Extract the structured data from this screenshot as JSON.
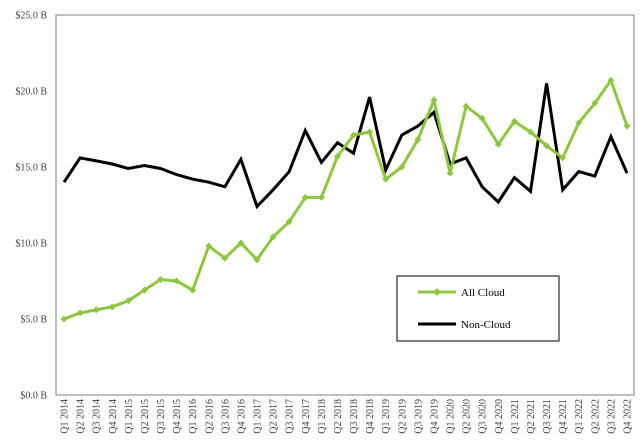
{
  "chart_data": {
    "type": "line",
    "title": "",
    "xlabel": "",
    "ylabel": "",
    "y_tick_labels": [
      "$0.0 B",
      "$5.0 B",
      "$10.0 B",
      "$15.0 B",
      "$20.0 B",
      "$25.0 B"
    ],
    "y_tick_values": [
      0,
      5,
      10,
      15,
      20,
      25
    ],
    "ylim": [
      0,
      25
    ],
    "grid": false,
    "legend_placement": "lower-right inside plot",
    "categories": [
      "Q1 2014",
      "Q2 2014",
      "Q3 2014",
      "Q4 2014",
      "Q1 2015",
      "Q2 2015",
      "Q3 2015",
      "Q4 2015",
      "Q1 2016",
      "Q2 2016",
      "Q3 2016",
      "Q4 2016",
      "Q1 2017",
      "Q2 2017",
      "Q3 2017",
      "Q4 2017",
      "Q1 2018",
      "Q2 2018",
      "Q3 2018",
      "Q4 2018",
      "Q1 2019",
      "Q2 2019",
      "Q3 2019",
      "Q4 2019",
      "Q1 2020",
      "Q2 2020",
      "Q3 2020",
      "Q4 2020",
      "Q1 2021",
      "Q2 2021",
      "Q3 2021",
      "Q4 2021",
      "Q1 2022",
      "Q2 2022",
      "Q3 2022",
      "Q4 2022"
    ],
    "series": [
      {
        "name": "All Cloud",
        "color": "#8dc63f",
        "marker": "diamond",
        "values": [
          5.0,
          5.4,
          5.6,
          5.8,
          6.2,
          6.9,
          7.6,
          7.5,
          6.9,
          9.8,
          9.0,
          10.0,
          8.9,
          10.4,
          11.4,
          13.0,
          13.0,
          15.7,
          17.1,
          17.3,
          14.2,
          15.0,
          16.8,
          19.4,
          14.6,
          19.0,
          18.2,
          16.5,
          18.0,
          17.3,
          16.4,
          15.6,
          17.9,
          19.2,
          20.7,
          17.7
        ]
      },
      {
        "name": "Non-Cloud",
        "color": "#000000",
        "marker": "none",
        "values": [
          14.0,
          15.6,
          15.4,
          15.2,
          14.9,
          15.1,
          14.9,
          14.5,
          14.2,
          14.0,
          13.7,
          15.5,
          12.4,
          13.5,
          14.7,
          17.4,
          15.3,
          16.6,
          15.9,
          19.6,
          14.8,
          17.1,
          17.7,
          18.6,
          15.2,
          15.6,
          13.7,
          12.7,
          14.3,
          13.4,
          20.5,
          13.5,
          14.7,
          14.4,
          17.0,
          14.6
        ]
      }
    ]
  }
}
